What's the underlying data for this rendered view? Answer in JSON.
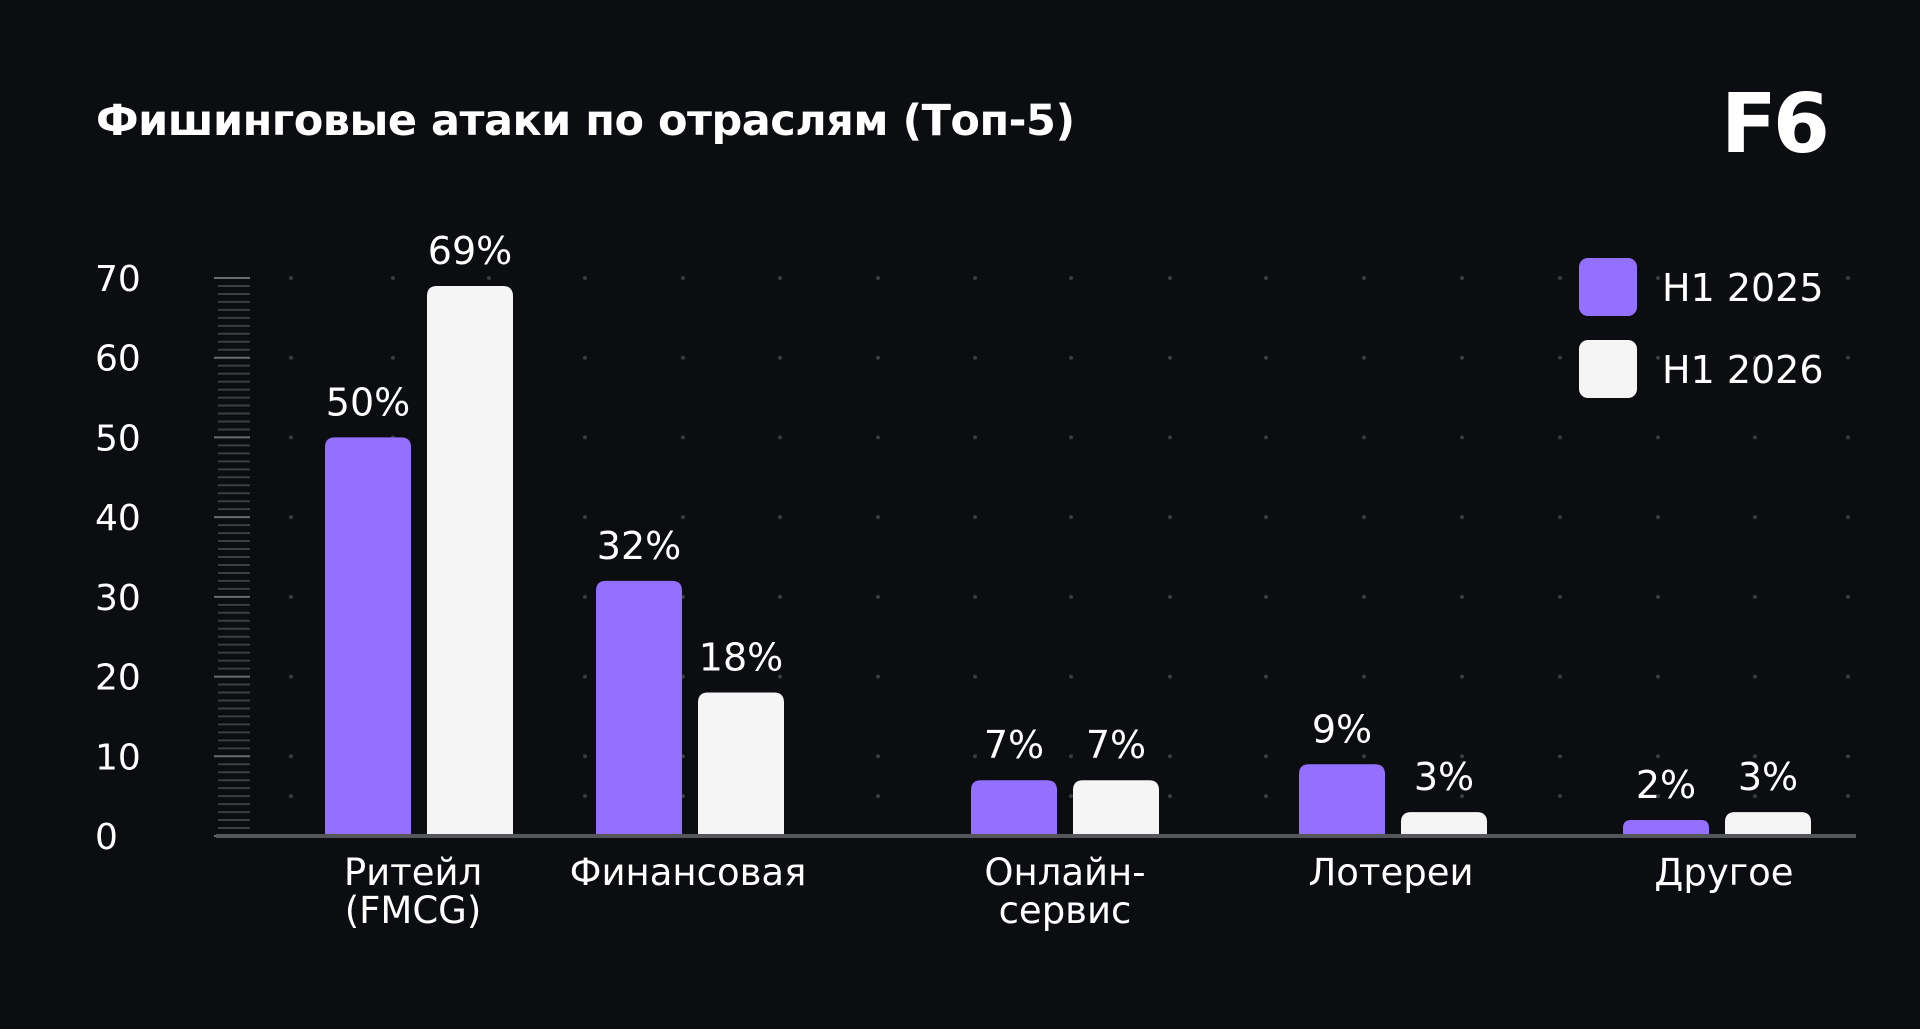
{
  "title": "Фишинговые атаки по отраслям (Топ-5)",
  "logo": "F6",
  "chart_data": {
    "type": "bar",
    "title": "Фишинговые атаки по отраслям (Топ-5)",
    "categories": [
      [
        "Ритейл",
        "(FMCG)"
      ],
      [
        "Финансовая"
      ],
      [
        "Онлайн-",
        "сервис"
      ],
      [
        "Лотереи"
      ],
      [
        "Другое"
      ]
    ],
    "series": [
      {
        "name": "H1 2025",
        "color": "#9370ff",
        "values": [
          50,
          32,
          7,
          9,
          2
        ],
        "labels": [
          "50%",
          "32%",
          "7%",
          "9%",
          "2%"
        ]
      },
      {
        "name": "H1 2026",
        "color": "#f5f5f5",
        "values": [
          69,
          18,
          7,
          3,
          3
        ],
        "labels": [
          "69%",
          "18%",
          "7%",
          "3%",
          "3%"
        ]
      }
    ],
    "yticks": [
      "0",
      "10",
      "20",
      "30",
      "40",
      "50",
      "60",
      "70"
    ],
    "ylim": [
      0,
      70
    ],
    "grid": "dotted",
    "legend": "top-right",
    "colors": {
      "background": "#0c0d10",
      "axis": "#55565a",
      "grid_dot": "#3a3b40"
    }
  }
}
